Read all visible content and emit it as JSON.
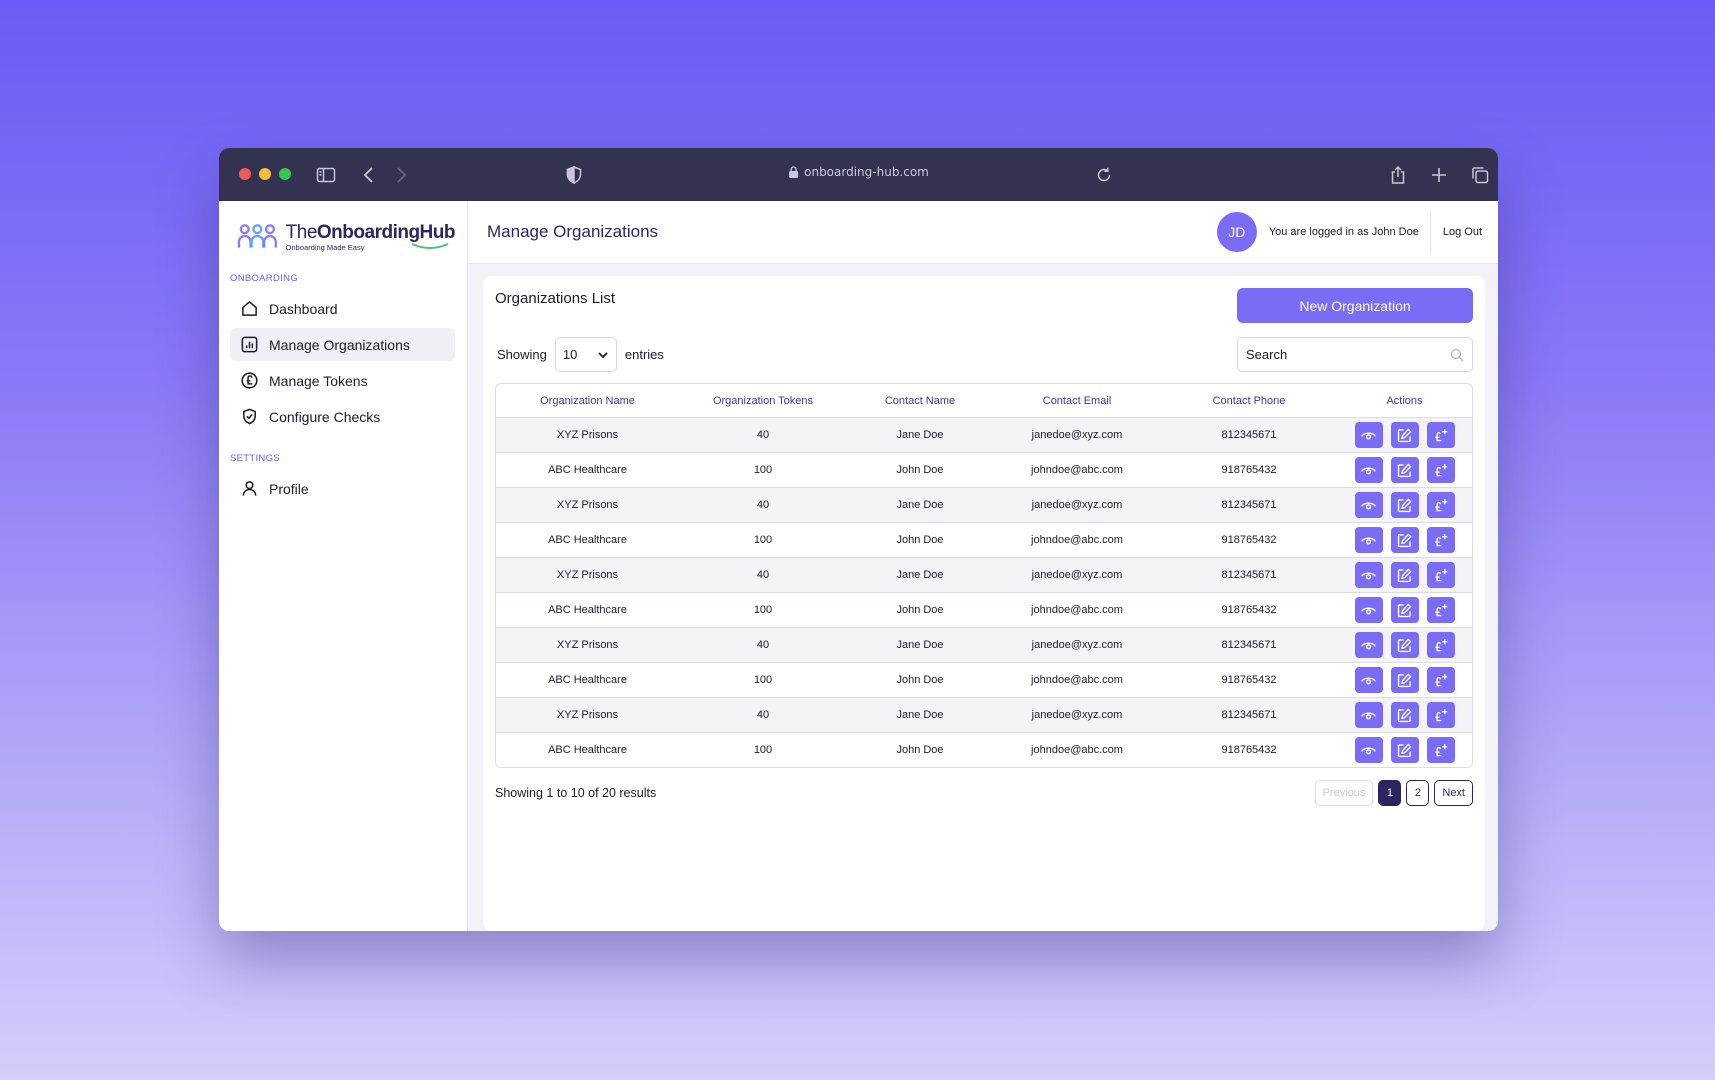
{
  "browser": {
    "url": "onboarding-hub.com",
    "dot_colors": [
      "#ee5b56",
      "#f5bd3a",
      "#36c74b"
    ]
  },
  "logo": {
    "title_prefix": "The",
    "title_bold": "OnboardingHub",
    "subtitle": "Onboarding Made Easy"
  },
  "sidebar": {
    "section_onboarding": "ONBOARDING",
    "items": [
      {
        "label": "Dashboard",
        "icon": "home-icon"
      },
      {
        "label": "Manage Organizations",
        "icon": "bar-chart-icon",
        "active": true
      },
      {
        "label": "Manage Tokens",
        "icon": "pound-coin-icon"
      },
      {
        "label": "Configure Checks",
        "icon": "shield-check-icon"
      }
    ],
    "section_settings": "SETTINGS",
    "settings_items": [
      {
        "label": "Profile",
        "icon": "user-icon"
      }
    ]
  },
  "header": {
    "title": "Manage Organizations",
    "avatar_initials": "JD",
    "login_text": "You are logged in as John Doe",
    "logout_label": "Log Out"
  },
  "card": {
    "title": "Organizations List",
    "new_button": "New Organization",
    "showing_label": "Showing",
    "entries_value": "10",
    "entries_label": "entries",
    "search_placeholder": "Search"
  },
  "table": {
    "headers": [
      "Organization Name",
      "Organization Tokens",
      "Contact Name",
      "Contact Email",
      "Contact Phone",
      "Actions"
    ],
    "rows": [
      [
        "XYZ Prisons",
        "40",
        "Jane Doe",
        "janedoe@xyz.com",
        "812345671"
      ],
      [
        "ABC Healthcare",
        "100",
        "John Doe",
        "johndoe@abc.com",
        "918765432"
      ],
      [
        "XYZ Prisons",
        "40",
        "Jane Doe",
        "janedoe@xyz.com",
        "812345671"
      ],
      [
        "ABC Healthcare",
        "100",
        "John Doe",
        "johndoe@abc.com",
        "918765432"
      ],
      [
        "XYZ Prisons",
        "40",
        "Jane Doe",
        "janedoe@xyz.com",
        "812345671"
      ],
      [
        "ABC Healthcare",
        "100",
        "John Doe",
        "johndoe@abc.com",
        "918765432"
      ],
      [
        "XYZ Prisons",
        "40",
        "Jane Doe",
        "janedoe@xyz.com",
        "812345671"
      ],
      [
        "ABC Healthcare",
        "100",
        "John Doe",
        "johndoe@abc.com",
        "918765432"
      ],
      [
        "XYZ Prisons",
        "40",
        "Jane Doe",
        "janedoe@xyz.com",
        "812345671"
      ],
      [
        "ABC Healthcare",
        "100",
        "John Doe",
        "johndoe@abc.com",
        "918765432"
      ]
    ],
    "action_icons": [
      "eye-icon",
      "edit-icon",
      "add-tokens-icon"
    ]
  },
  "footer": {
    "results_text": "Showing 1 to 10 of 20 results",
    "previous_label": "Previous",
    "pages": [
      "1",
      "2"
    ],
    "current_page": "1",
    "next_label": "Next"
  },
  "colors": {
    "accent": "#7b6cf6",
    "navy": "#2b2660",
    "titlebar": "#343251"
  }
}
